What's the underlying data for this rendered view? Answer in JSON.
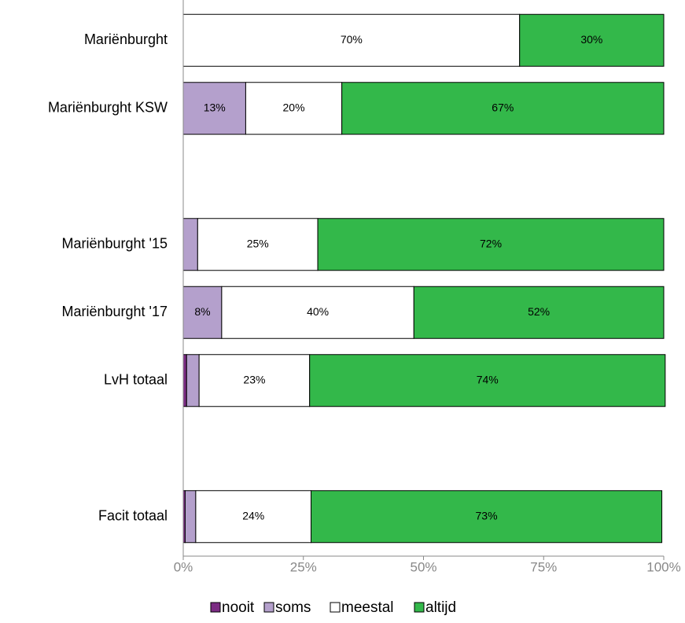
{
  "chart_data": {
    "type": "stacked-bar-horizontal",
    "categories": [
      "Mariënburght",
      "Mariënburght KSW",
      null,
      "Mariënburght '15",
      "Mariënburght '17",
      "LvH totaal",
      null,
      "Facit totaal"
    ],
    "series": [
      {
        "name": "nooit",
        "color": "#7b2c83",
        "values": [
          0,
          0,
          null,
          0,
          0,
          0.7,
          null,
          0.4
        ],
        "value_labels": [
          null,
          null,
          null,
          null,
          null,
          null,
          null,
          null
        ]
      },
      {
        "name": "soms",
        "color": "#b4a0cc",
        "values": [
          0,
          13,
          null,
          3,
          8,
          2.6,
          null,
          2.2
        ],
        "value_labels": [
          null,
          "13%",
          null,
          null,
          "8%",
          null,
          null,
          null
        ]
      },
      {
        "name": "meestal",
        "color": "#ffffff",
        "values": [
          70,
          20,
          null,
          25,
          40,
          23,
          null,
          24
        ],
        "value_labels": [
          "70%",
          "20%",
          null,
          "25%",
          "40%",
          "23%",
          null,
          "24%"
        ]
      },
      {
        "name": "altijd",
        "color": "#33b84a",
        "values": [
          30,
          67,
          null,
          72,
          52,
          74,
          null,
          73
        ],
        "value_labels": [
          "30%",
          "67%",
          null,
          "72%",
          "52%",
          "74%",
          null,
          "73%"
        ]
      }
    ],
    "xlim": [
      0,
      100
    ],
    "xticks": [
      {
        "value": 0,
        "label": "0%"
      },
      {
        "value": 25,
        "label": "25%"
      },
      {
        "value": 50,
        "label": "50%"
      },
      {
        "value": 75,
        "label": "75%"
      },
      {
        "value": 100,
        "label": "100%"
      }
    ],
    "legend": "bottom"
  }
}
